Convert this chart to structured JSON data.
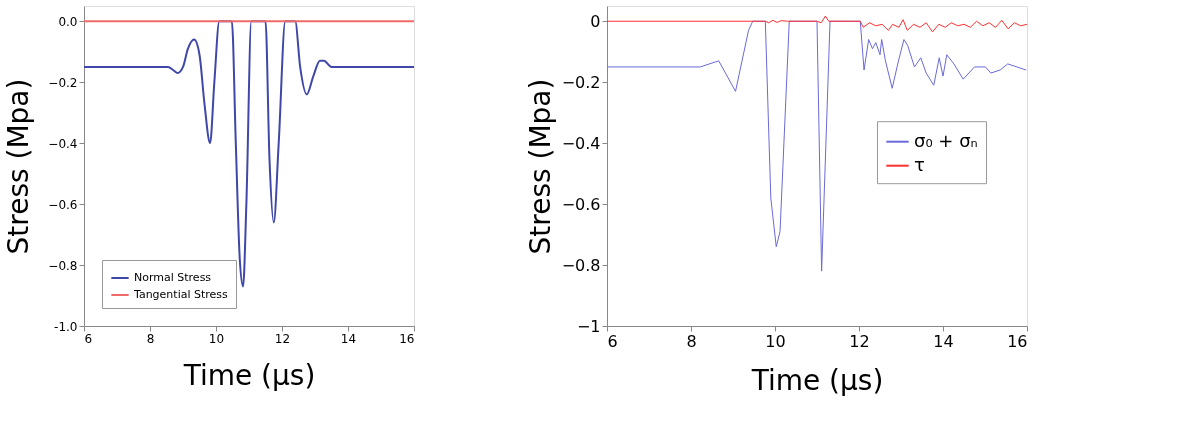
{
  "chart_data": [
    {
      "type": "line",
      "xlabel": "Time (μs)",
      "ylabel": "Stress (Mpa)",
      "xlim": [
        6,
        16
      ],
      "xticks": [
        6,
        8,
        10,
        12,
        14,
        16
      ],
      "ylim": [
        -1,
        0.05
      ],
      "yticks": [
        {
          "value": -1,
          "label": "-1.0"
        },
        -0.8,
        -0.6,
        -0.4,
        -0.2,
        {
          "value": 0,
          "label": "0.0"
        }
      ],
      "legend": "bottom left",
      "grid": false,
      "marker": "none",
      "line_style": "solid",
      "series": [
        {
          "name": "Normal Stress",
          "color": "#3f48a8",
          "x": [
            6,
            8.55,
            8.7,
            8.84,
            9.0,
            9.15,
            9.34,
            9.5,
            9.65,
            9.82,
            9.95,
            10.1,
            10.48,
            10.6,
            10.72,
            10.82,
            10.92,
            11.07,
            11.5,
            11.62,
            11.75,
            11.9,
            12.1,
            12.4,
            12.55,
            12.75,
            12.95,
            13.15,
            13.27,
            13.5,
            13.8,
            16
          ],
          "values": [
            -0.15,
            -0.15,
            -0.16,
            -0.17,
            -0.15,
            -0.09,
            -0.06,
            -0.11,
            -0.27,
            -0.4,
            -0.2,
            0,
            0,
            -0.4,
            -0.78,
            -0.87,
            -0.6,
            0,
            0,
            -0.45,
            -0.66,
            -0.4,
            0,
            0,
            -0.15,
            -0.24,
            -0.18,
            -0.13,
            -0.13,
            -0.15,
            -0.15,
            -0.15
          ]
        },
        {
          "name": "Tangential Stress",
          "color": "#f06a6a",
          "x": [
            6,
            16
          ],
          "values": [
            0,
            0
          ]
        }
      ]
    },
    {
      "type": "line",
      "xlabel": "Time (μs)",
      "ylabel": "Stress (Mpa)",
      "xlim": [
        6,
        16
      ],
      "xticks": [
        6,
        8,
        10,
        12,
        14,
        16
      ],
      "ylim": [
        -1,
        0.05
      ],
      "yticks": [
        -1,
        -0.8,
        -0.6,
        -0.4,
        -0.2,
        0
      ],
      "legend": "right",
      "grid": false,
      "marker": "none",
      "line_style": "solid",
      "series": [
        {
          "name": "σ₀ + σₙ",
          "color": "#6a6ad8",
          "x": [
            6,
            8.22,
            8.66,
            9.06,
            9.37,
            9.47,
            9.77,
            9.9,
            10.03,
            10.12,
            10.34,
            11.0,
            11.11,
            11.31,
            12.03,
            12.12,
            12.23,
            12.32,
            12.4,
            12.5,
            12.54,
            12.63,
            12.79,
            12.94,
            13.07,
            13.16,
            13.32,
            13.47,
            13.6,
            13.78,
            13.91,
            14.0,
            14.09,
            14.26,
            14.48,
            14.75,
            15.01,
            15.14,
            15.36,
            15.54,
            15.76,
            15.98
          ],
          "values": [
            -0.15,
            -0.15,
            -0.13,
            -0.23,
            -0.03,
            0,
            0,
            -0.58,
            -0.74,
            -0.69,
            0,
            0,
            -0.82,
            0,
            0,
            -0.16,
            -0.06,
            -0.09,
            -0.07,
            -0.11,
            -0.06,
            -0.13,
            -0.22,
            -0.13,
            -0.06,
            -0.08,
            -0.15,
            -0.12,
            -0.17,
            -0.21,
            -0.12,
            -0.18,
            -0.11,
            -0.14,
            -0.19,
            -0.15,
            -0.15,
            -0.17,
            -0.16,
            -0.14,
            -0.15,
            -0.16
          ]
        },
        {
          "name": "τ",
          "color": "#ff3030",
          "x": [
            6,
            9.77,
            9.85,
            9.95,
            10.05,
            10.15,
            10.3,
            11.0,
            11.1,
            11.2,
            11.28,
            12.03,
            12.1,
            12.25,
            12.4,
            12.55,
            12.7,
            12.8,
            12.95,
            13.05,
            13.15,
            13.3,
            13.45,
            13.6,
            13.75,
            13.9,
            14.05,
            14.2,
            14.35,
            14.5,
            14.65,
            14.8,
            14.95,
            15.1,
            15.25,
            15.4,
            15.55,
            15.7,
            15.85,
            16
          ],
          "values": [
            0,
            0,
            -0.005,
            0.003,
            -0.004,
            0.002,
            0,
            0,
            -0.005,
            0.017,
            0,
            0,
            -0.02,
            -0.005,
            -0.015,
            -0.01,
            -0.03,
            -0.01,
            -0.02,
            0.005,
            -0.03,
            -0.01,
            -0.02,
            -0.005,
            -0.035,
            -0.01,
            -0.02,
            -0.005,
            -0.015,
            -0.01,
            -0.02,
            0,
            -0.015,
            -0.005,
            -0.02,
            0.003,
            -0.025,
            -0.005,
            -0.015,
            -0.01
          ]
        }
      ]
    }
  ]
}
